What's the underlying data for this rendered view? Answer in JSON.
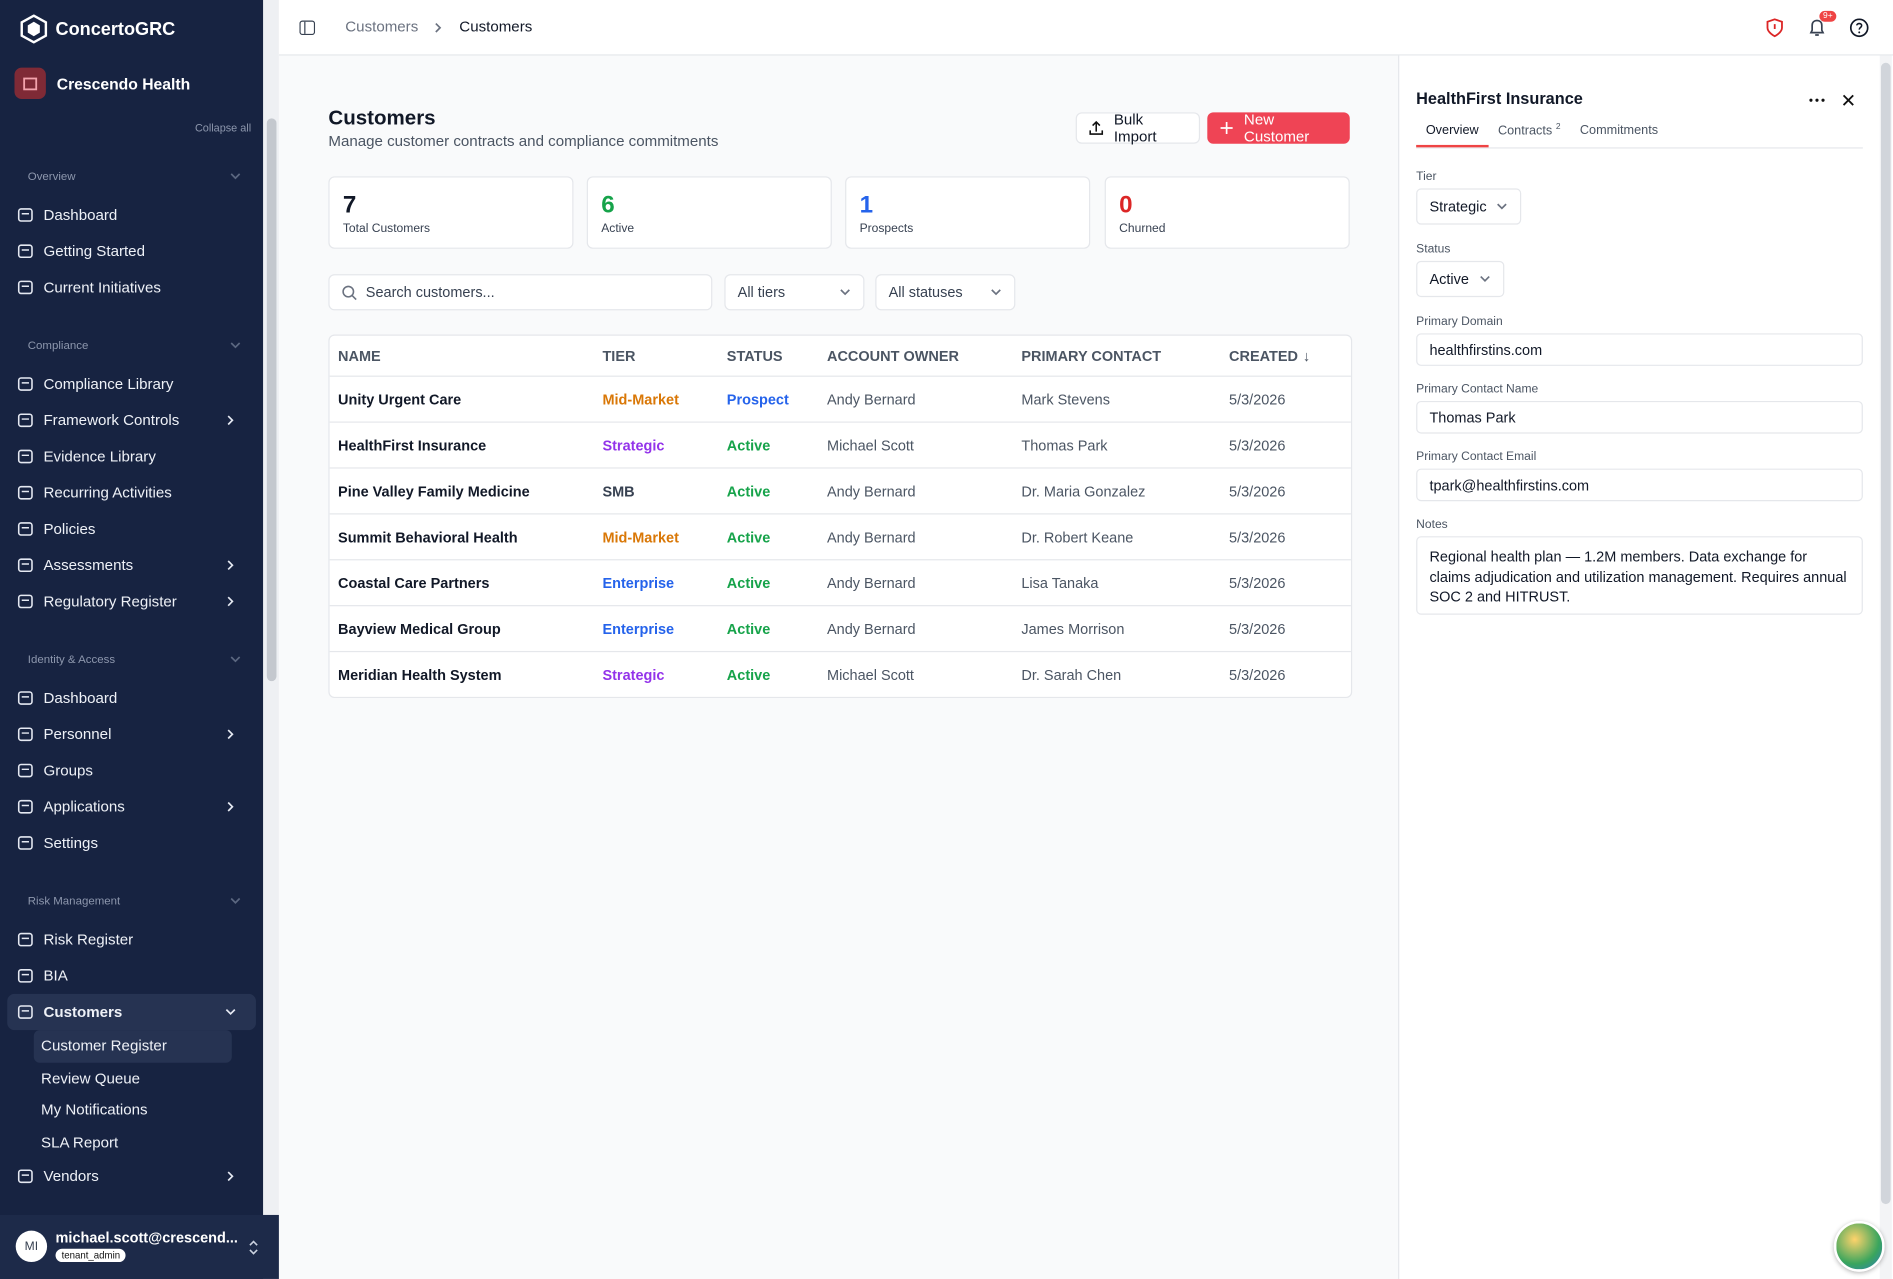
{
  "sidebar": {
    "brand": "ConcertoGRC",
    "org": "Crescendo Health",
    "collapse_all": "Collapse all",
    "sections": [
      {
        "title": "Overview",
        "items": [
          {
            "label": "Dashboard"
          },
          {
            "label": "Getting Started"
          },
          {
            "label": "Current Initiatives"
          }
        ]
      },
      {
        "title": "Compliance",
        "items": [
          {
            "label": "Compliance Library"
          },
          {
            "label": "Framework Controls",
            "expandable": true
          },
          {
            "label": "Evidence Library"
          },
          {
            "label": "Recurring Activities"
          },
          {
            "label": "Policies"
          },
          {
            "label": "Assessments",
            "expandable": true
          },
          {
            "label": "Regulatory Register",
            "expandable": true
          }
        ]
      },
      {
        "title": "Identity & Access",
        "items": [
          {
            "label": "Dashboard"
          },
          {
            "label": "Personnel",
            "expandable": true
          },
          {
            "label": "Groups"
          },
          {
            "label": "Applications",
            "expandable": true
          },
          {
            "label": "Settings"
          }
        ]
      },
      {
        "title": "Risk Management",
        "items": [
          {
            "label": "Risk Register"
          },
          {
            "label": "BIA"
          },
          {
            "label": "Customers",
            "expandable": true,
            "expanded": true,
            "active": true,
            "children": [
              {
                "label": "Customer Register",
                "active": true
              },
              {
                "label": "Review Queue"
              },
              {
                "label": "My Notifications"
              },
              {
                "label": "SLA Report"
              }
            ]
          },
          {
            "label": "Vendors",
            "expandable": true
          }
        ]
      }
    ],
    "user": {
      "initials": "MI",
      "email": "michael.scott@crescend...",
      "role": "tenant_admin"
    }
  },
  "topbar": {
    "breadcrumb": [
      "Customers",
      "Customers"
    ],
    "notification_badge": "9+"
  },
  "page": {
    "title": "Customers",
    "subtitle": "Manage customer contracts and compliance commitments",
    "actions": [
      "Bulk Import",
      "New Customer"
    ],
    "stats": [
      {
        "value": 7,
        "label": "Total Customers",
        "color": "#111827"
      },
      {
        "value": 6,
        "label": "Active",
        "color": "#16a34a"
      },
      {
        "value": 1,
        "label": "Prospects",
        "color": "#2563eb"
      },
      {
        "value": 0,
        "label": "Churned",
        "color": "#dc2626"
      }
    ],
    "search_placeholder": "Search customers...",
    "filters": [
      "All tiers",
      "All statuses"
    ]
  },
  "table": {
    "columns": [
      {
        "label": "NAME"
      },
      {
        "label": "TIER"
      },
      {
        "label": "STATUS"
      },
      {
        "label": "ACCOUNT OWNER"
      },
      {
        "label": "PRIMARY CONTACT"
      },
      {
        "label": "CREATED",
        "sort": "↓"
      }
    ],
    "rows": [
      [
        "Unity Urgent Care",
        "Mid-Market",
        "Prospect",
        "Andy Bernard",
        "Mark Stevens",
        "5/3/2026"
      ],
      [
        "HealthFirst Insurance",
        "Strategic",
        "Active",
        "Michael Scott",
        "Thomas Park",
        "5/3/2026"
      ],
      [
        "Pine Valley Family Medicine",
        "SMB",
        "Active",
        "Andy Bernard",
        "Dr. Maria Gonzalez",
        "5/3/2026"
      ],
      [
        "Summit Behavioral Health",
        "Mid-Market",
        "Active",
        "Andy Bernard",
        "Dr. Robert Keane",
        "5/3/2026"
      ],
      [
        "Coastal Care Partners",
        "Enterprise",
        "Active",
        "Andy Bernard",
        "Lisa Tanaka",
        "5/3/2026"
      ],
      [
        "Bayview Medical Group",
        "Enterprise",
        "Active",
        "Andy Bernard",
        "James Morrison",
        "5/3/2026"
      ],
      [
        "Meridian Health System",
        "Strategic",
        "Active",
        "Michael Scott",
        "Dr. Sarah Chen",
        "5/3/2026"
      ]
    ],
    "tier_colors": {
      "Mid-Market": "#d97706",
      "Strategic": "#9333ea",
      "SMB": "#374151",
      "Enterprise": "#2563eb"
    },
    "status_colors": {
      "Prospect": "#2563eb",
      "Active": "#16a34a"
    }
  },
  "detail": {
    "title": "HealthFirst Insurance",
    "tabs": [
      {
        "label": "Overview",
        "selected": true
      },
      {
        "label": "Contracts",
        "count": 2
      },
      {
        "label": "Commitments"
      }
    ],
    "fields": [
      {
        "label": "Tier",
        "value": "Strategic",
        "kind": "select"
      },
      {
        "label": "Status",
        "value": "Active",
        "kind": "select"
      },
      {
        "label": "Primary Domain",
        "value": "healthfirstins.com",
        "kind": "input"
      },
      {
        "label": "Primary Contact Name",
        "value": "Thomas Park",
        "kind": "input"
      },
      {
        "label": "Primary Contact Email",
        "value": "tpark@healthfirstins.com",
        "kind": "input"
      },
      {
        "label": "Notes",
        "value": "Regional health plan — 1.2M members. Data exchange for claims adjudication and utilization management. Requires annual SOC 2 and HITRUST.",
        "kind": "textarea"
      }
    ]
  }
}
